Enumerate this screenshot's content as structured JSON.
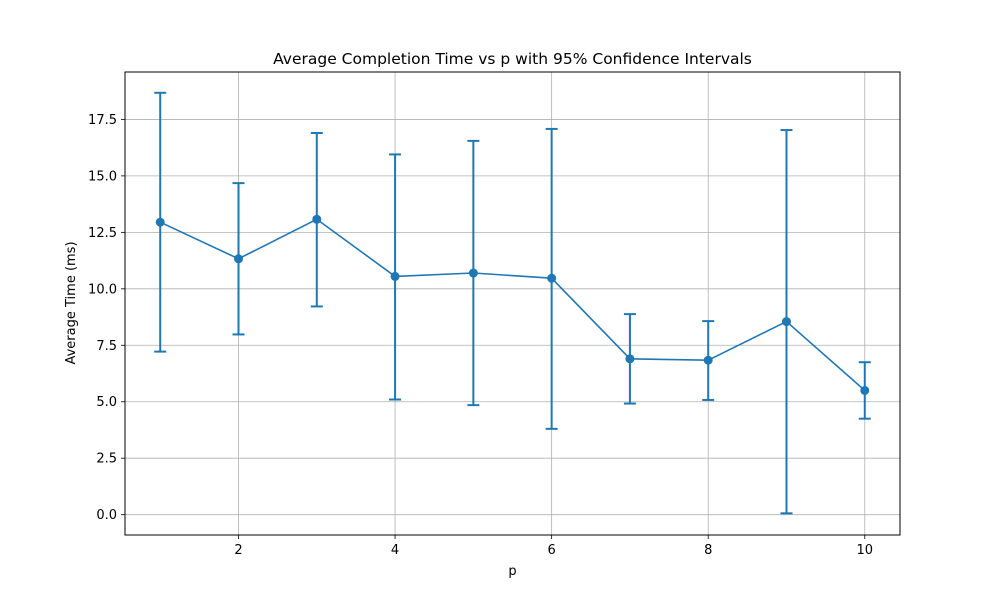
{
  "chart_data": {
    "type": "line",
    "title": "Average Completion Time vs p with 95% Confidence Intervals",
    "xlabel": "p",
    "ylabel": "Average Time (ms)",
    "xlim": [
      0.55,
      10.45
    ],
    "ylim": [
      -0.9,
      19.6
    ],
    "xticks": [
      2,
      4,
      6,
      8,
      10
    ],
    "xtick_labels": [
      "2",
      "4",
      "6",
      "8",
      "10"
    ],
    "yticks": [
      0.0,
      2.5,
      5.0,
      7.5,
      10.0,
      12.5,
      15.0,
      17.5
    ],
    "ytick_labels": [
      "0.0",
      "2.5",
      "5.0",
      "7.5",
      "10.0",
      "12.5",
      "15.0",
      "17.5"
    ],
    "grid": true,
    "series": [
      {
        "x": [
          1,
          2,
          3,
          4,
          5,
          6,
          7,
          8,
          9,
          10
        ],
        "y": [
          12.95,
          11.33,
          13.08,
          10.55,
          10.7,
          10.47,
          6.9,
          6.84,
          8.55,
          5.5
        ],
        "ci_lower": [
          7.22,
          7.98,
          9.22,
          5.1,
          4.85,
          3.8,
          4.92,
          5.08,
          0.06,
          4.25
        ],
        "ci_upper": [
          18.68,
          14.68,
          16.9,
          15.95,
          16.55,
          17.08,
          8.88,
          8.57,
          17.03,
          6.75
        ],
        "color": "#1f77b4"
      }
    ]
  }
}
